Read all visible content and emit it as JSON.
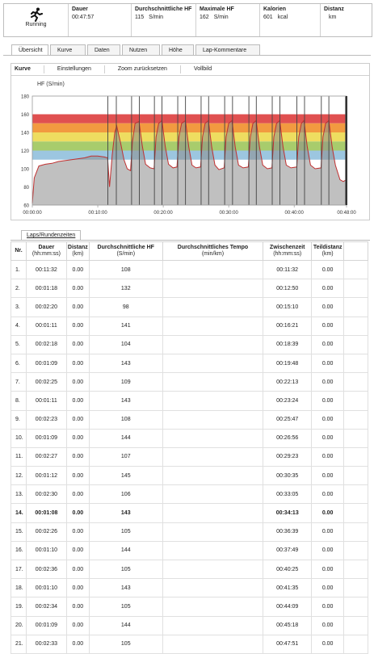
{
  "summary": {
    "activity": "Running",
    "dauer_label": "Dauer",
    "dauer_value": "00:47:57",
    "hf_label": "Durchschnittliche HF",
    "hf_value": "115",
    "hf_unit": "S/min",
    "maxhf_label": "Maximale HF",
    "maxhf_value": "162",
    "maxhf_unit": "S/min",
    "kal_label": "Kalorien",
    "kal_value": "601",
    "kal_unit": "kcal",
    "dist_label": "Distanz",
    "dist_value": "",
    "dist_unit": "km"
  },
  "tabs": [
    "Übersicht",
    "Kurve",
    "Daten",
    "Nutzen",
    "Höhe",
    "Lap-Kommentare"
  ],
  "toolbar": {
    "kurve": "Kurve",
    "einstellungen": "Einstellungen",
    "zoom": "Zoom zurücksetzen",
    "vollbild": "Vollbild"
  },
  "zone_colors": [
    "#e05050",
    "#f29a40",
    "#eedd60",
    "#a8cc6c",
    "#9cc6e0"
  ],
  "chart_data": {
    "type": "line",
    "ylabel": "HF (S/min)",
    "ylim": [
      60,
      180
    ],
    "yticks": [
      "180",
      "160",
      "140",
      "120",
      "100",
      "80",
      "60"
    ],
    "xticks": [
      "00:00:00",
      "00:10:00",
      "00:20:00",
      "00:30:00",
      "00:40:00",
      "00:48:00"
    ],
    "zones": [
      [
        150,
        160
      ],
      [
        140,
        150
      ],
      [
        130,
        140
      ],
      [
        120,
        130
      ],
      [
        110,
        120
      ]
    ],
    "lap_markers": [
      "00:11:32",
      "00:12:50",
      "00:15:10",
      "00:16:21",
      "00:18:39",
      "00:19:48",
      "00:22:13",
      "00:23:24",
      "00:25:47",
      "00:26:56",
      "00:29:23",
      "00:30:35",
      "00:33:05",
      "00:34:13",
      "00:36:39",
      "00:37:49",
      "00:40:25",
      "00:41:35",
      "00:44:09",
      "00:45:18",
      "00:47:51"
    ],
    "series": [
      {
        "values": [
          [
            0,
            62
          ],
          [
            0.3,
            90
          ],
          [
            1,
            103
          ],
          [
            2,
            105
          ],
          [
            3,
            106
          ],
          [
            4,
            108
          ],
          [
            5,
            109
          ],
          [
            6,
            110
          ],
          [
            7,
            111
          ],
          [
            8,
            112
          ],
          [
            9,
            114
          ],
          [
            10,
            114
          ],
          [
            11,
            113
          ],
          [
            11.5,
            112
          ],
          [
            11.8,
            80
          ],
          [
            12.2,
            115
          ],
          [
            12.6,
            140
          ],
          [
            12.9,
            147
          ],
          [
            13.5,
            128
          ],
          [
            14,
            110
          ],
          [
            14.5,
            100
          ],
          [
            15,
            98
          ],
          [
            15.3,
            130
          ],
          [
            15.7,
            150
          ],
          [
            16.3,
            152
          ],
          [
            16.8,
            125
          ],
          [
            17.3,
            105
          ],
          [
            18,
            101
          ],
          [
            18.6,
            100
          ],
          [
            18.9,
            135
          ],
          [
            19.3,
            150
          ],
          [
            19.8,
            153
          ],
          [
            20.3,
            125
          ],
          [
            20.8,
            105
          ],
          [
            21.5,
            101
          ],
          [
            22.1,
            102
          ],
          [
            22.4,
            135
          ],
          [
            22.8,
            150
          ],
          [
            23.4,
            153
          ],
          [
            23.9,
            124
          ],
          [
            24.4,
            104
          ],
          [
            25,
            101
          ],
          [
            25.7,
            102
          ],
          [
            26,
            135
          ],
          [
            26.4,
            150
          ],
          [
            26.9,
            153
          ],
          [
            27.4,
            124
          ],
          [
            27.9,
            104
          ],
          [
            28.5,
            99
          ],
          [
            29.3,
            101
          ],
          [
            29.6,
            135
          ],
          [
            30,
            150
          ],
          [
            30.5,
            153
          ],
          [
            31,
            124
          ],
          [
            31.5,
            104
          ],
          [
            32.2,
            101
          ],
          [
            33,
            102
          ],
          [
            33.3,
            135
          ],
          [
            33.7,
            150
          ],
          [
            34.2,
            153
          ],
          [
            34.7,
            124
          ],
          [
            35.2,
            104
          ],
          [
            35.9,
            100
          ],
          [
            36.6,
            101
          ],
          [
            36.9,
            135
          ],
          [
            37.3,
            150
          ],
          [
            37.8,
            153
          ],
          [
            38.3,
            124
          ],
          [
            38.8,
            104
          ],
          [
            39.5,
            101
          ],
          [
            40.4,
            102
          ],
          [
            40.7,
            135
          ],
          [
            41.1,
            150
          ],
          [
            41.5,
            153
          ],
          [
            42,
            124
          ],
          [
            42.5,
            104
          ],
          [
            43.2,
            100
          ],
          [
            44.1,
            101
          ],
          [
            44.4,
            135
          ],
          [
            44.8,
            150
          ],
          [
            45.3,
            153
          ],
          [
            45.8,
            124
          ],
          [
            46.3,
            104
          ],
          [
            47,
            88
          ],
          [
            47.5,
            86
          ],
          [
            48,
            88
          ]
        ]
      }
    ]
  },
  "laps_tab": "Laps/Rundenzeiten",
  "laps_header": [
    {
      "t": "Nr.",
      "u": ""
    },
    {
      "t": "Dauer",
      "u": "(hh:mm:ss)"
    },
    {
      "t": "Distanz",
      "u": "(km)"
    },
    {
      "t": "Durchschnittliche HF",
      "u": "(S/min)"
    },
    {
      "t": "Durchschnittliches Tempo",
      "u": "(min/km)"
    },
    {
      "t": "Zwischenzeit",
      "u": "(hh:mm:ss)"
    },
    {
      "t": "Teildistanz",
      "u": "(km)"
    },
    {
      "t": "",
      "u": ""
    }
  ],
  "laps": [
    [
      "1.",
      "00:11:32",
      "0.00",
      "108",
      "",
      "00:11:32",
      "0.00"
    ],
    [
      "2.",
      "00:01:18",
      "0.00",
      "132",
      "",
      "00:12:50",
      "0.00"
    ],
    [
      "3.",
      "00:02:20",
      "0.00",
      "98",
      "",
      "00:15:10",
      "0.00"
    ],
    [
      "4.",
      "00:01:11",
      "0.00",
      "141",
      "",
      "00:16:21",
      "0.00"
    ],
    [
      "5.",
      "00:02:18",
      "0.00",
      "104",
      "",
      "00:18:39",
      "0.00"
    ],
    [
      "6.",
      "00:01:09",
      "0.00",
      "143",
      "",
      "00:19:48",
      "0.00"
    ],
    [
      "7.",
      "00:02:25",
      "0.00",
      "109",
      "",
      "00:22:13",
      "0.00"
    ],
    [
      "8.",
      "00:01:11",
      "0.00",
      "143",
      "",
      "00:23:24",
      "0.00"
    ],
    [
      "9.",
      "00:02:23",
      "0.00",
      "108",
      "",
      "00:25:47",
      "0.00"
    ],
    [
      "10.",
      "00:01:09",
      "0.00",
      "144",
      "",
      "00:26:56",
      "0.00"
    ],
    [
      "11.",
      "00:02:27",
      "0.00",
      "107",
      "",
      "00:29:23",
      "0.00"
    ],
    [
      "12.",
      "00:01:12",
      "0.00",
      "145",
      "",
      "00:30:35",
      "0.00"
    ],
    [
      "13.",
      "00:02:30",
      "0.00",
      "106",
      "",
      "00:33:05",
      "0.00"
    ],
    [
      "14.",
      "00:01:08",
      "0.00",
      "143",
      "",
      "00:34:13",
      "0.00"
    ],
    [
      "15.",
      "00:02:26",
      "0.00",
      "105",
      "",
      "00:36:39",
      "0.00"
    ],
    [
      "16.",
      "00:01:10",
      "0.00",
      "144",
      "",
      "00:37:49",
      "0.00"
    ],
    [
      "17.",
      "00:02:36",
      "0.00",
      "105",
      "",
      "00:40:25",
      "0.00"
    ],
    [
      "18.",
      "00:01:10",
      "0.00",
      "143",
      "",
      "00:41:35",
      "0.00"
    ],
    [
      "19.",
      "00:02:34",
      "0.00",
      "105",
      "",
      "00:44:09",
      "0.00"
    ],
    [
      "20.",
      "00:01:09",
      "0.00",
      "144",
      "",
      "00:45:18",
      "0.00"
    ],
    [
      "21.",
      "00:02:33",
      "0.00",
      "105",
      "",
      "00:47:51",
      "0.00"
    ]
  ],
  "bold_lap": 14
}
